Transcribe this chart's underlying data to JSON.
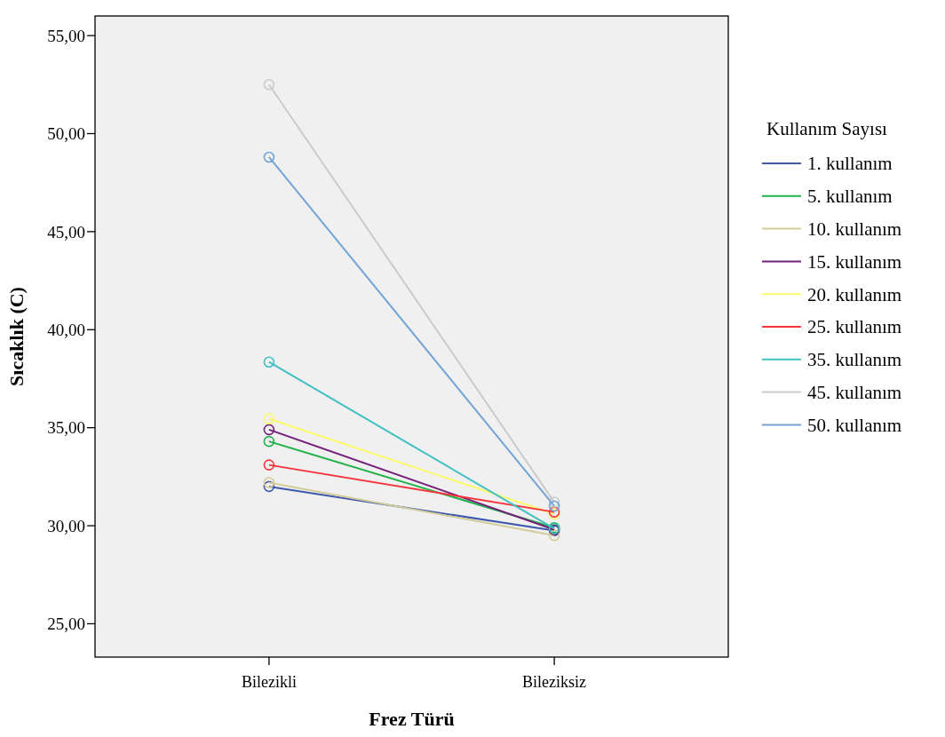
{
  "chart_data": {
    "type": "line",
    "xlabel": "Frez Türü",
    "ylabel": "Sıcaklık (C)",
    "legend_title": "Kullanım Sayısı",
    "categories": [
      "Bilezikli",
      "Bileziksiz"
    ],
    "series": [
      {
        "name": "1. kullanım",
        "color": "#3e58ac",
        "values": [
          32.0,
          29.75
        ]
      },
      {
        "name": "5. kullanım",
        "color": "#21b24b",
        "values": [
          34.3,
          29.9
        ]
      },
      {
        "name": "10. kullanım",
        "color": "#d2cc9b",
        "values": [
          32.2,
          29.5
        ]
      },
      {
        "name": "15. kullanım",
        "color": "#761f7b",
        "values": [
          34.9,
          29.8
        ]
      },
      {
        "name": "20. kullanım",
        "color": "#fcf96a",
        "values": [
          35.45,
          30.6
        ]
      },
      {
        "name": "25. kullanım",
        "color": "#f7343a",
        "values": [
          33.1,
          30.7
        ]
      },
      {
        "name": "35. kullanım",
        "color": "#41c0c3",
        "values": [
          38.35,
          29.85
        ]
      },
      {
        "name": "45. kullanım",
        "color": "#cbcbcb",
        "values": [
          52.5,
          31.2
        ]
      },
      {
        "name": "50. kullanım",
        "color": "#72a4d7",
        "values": [
          48.8,
          31.0
        ]
      }
    ],
    "ylim": [
      23.3,
      56.0
    ],
    "yticks": [
      {
        "value": 25,
        "label": "25,00"
      },
      {
        "value": 30,
        "label": "30,00"
      },
      {
        "value": 35,
        "label": "35,00"
      },
      {
        "value": 40,
        "label": "40,00"
      },
      {
        "value": 45,
        "label": "45,00"
      },
      {
        "value": 50,
        "label": "50,00"
      },
      {
        "value": 55,
        "label": "55,00"
      }
    ],
    "grid": false,
    "legend": "right",
    "marker": "circle",
    "line_style": "solid"
  }
}
